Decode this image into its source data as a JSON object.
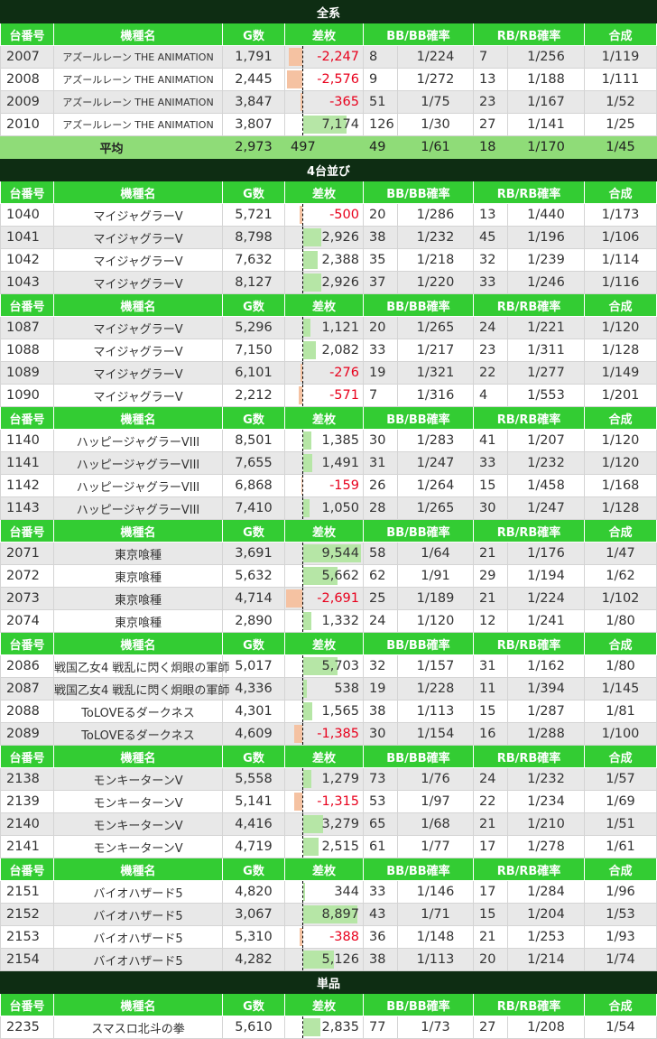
{
  "headers": [
    "台番号",
    "機種名",
    "G数",
    "差枚",
    "BB/BB確率",
    "RB/RB確率",
    "合成"
  ],
  "colors": {
    "section_bg": "#0e2d13",
    "header_bg": "#33cc33",
    "avg_bg": "#8fdc78",
    "bar_pos": "#b6e6a6",
    "bar_neg": "#f5c2a2",
    "negative_text": "#e8001c"
  },
  "diff_bar_max": 10000,
  "sections": [
    {
      "title": "全系",
      "groups": [
        {
          "rows": [
            [
              "2007",
              "アズールレーン THE ANIMATION",
              "1,791",
              -2247,
              "8",
              "1/224",
              "7",
              "1/256",
              "1/119"
            ],
            [
              "2008",
              "アズールレーン THE ANIMATION",
              "2,445",
              -2576,
              "9",
              "1/272",
              "13",
              "1/188",
              "1/111"
            ],
            [
              "2009",
              "アズールレーン THE ANIMATION",
              "3,847",
              -365,
              "51",
              "1/75",
              "23",
              "1/167",
              "1/52"
            ],
            [
              "2010",
              "アズールレーン THE ANIMATION",
              "3,807",
              7174,
              "126",
              "1/30",
              "27",
              "1/141",
              "1/25"
            ]
          ],
          "average": {
            "label": "平均",
            "g": "2,973",
            "diff": "497",
            "bb": "49",
            "bbp": "1/61",
            "rb": "18",
            "rbp": "1/170",
            "total": "1/45"
          }
        }
      ]
    },
    {
      "title": "4台並び",
      "groups": [
        {
          "rows": [
            [
              "1040",
              "マイジャグラーV",
              "5,721",
              -500,
              "20",
              "1/286",
              "13",
              "1/440",
              "1/173"
            ],
            [
              "1041",
              "マイジャグラーV",
              "8,798",
              2926,
              "38",
              "1/232",
              "45",
              "1/196",
              "1/106"
            ],
            [
              "1042",
              "マイジャグラーV",
              "7,632",
              2388,
              "35",
              "1/218",
              "32",
              "1/239",
              "1/114"
            ],
            [
              "1043",
              "マイジャグラーV",
              "8,127",
              2926,
              "37",
              "1/220",
              "33",
              "1/246",
              "1/116"
            ]
          ]
        },
        {
          "rows": [
            [
              "1087",
              "マイジャグラーV",
              "5,296",
              1121,
              "20",
              "1/265",
              "24",
              "1/221",
              "1/120"
            ],
            [
              "1088",
              "マイジャグラーV",
              "7,150",
              2082,
              "33",
              "1/217",
              "23",
              "1/311",
              "1/128"
            ],
            [
              "1089",
              "マイジャグラーV",
              "6,101",
              -276,
              "19",
              "1/321",
              "22",
              "1/277",
              "1/149"
            ],
            [
              "1090",
              "マイジャグラーV",
              "2,212",
              -571,
              "7",
              "1/316",
              "4",
              "1/553",
              "1/201"
            ]
          ]
        },
        {
          "rows": [
            [
              "1140",
              "ハッピージャグラーVIII",
              "8,501",
              1385,
              "30",
              "1/283",
              "41",
              "1/207",
              "1/120"
            ],
            [
              "1141",
              "ハッピージャグラーVIII",
              "7,655",
              1491,
              "31",
              "1/247",
              "33",
              "1/232",
              "1/120"
            ],
            [
              "1142",
              "ハッピージャグラーVIII",
              "6,868",
              -159,
              "26",
              "1/264",
              "15",
              "1/458",
              "1/168"
            ],
            [
              "1143",
              "ハッピージャグラーVIII",
              "7,410",
              1050,
              "28",
              "1/265",
              "30",
              "1/247",
              "1/128"
            ]
          ]
        },
        {
          "rows": [
            [
              "2071",
              "東京喰種",
              "3,691",
              9544,
              "58",
              "1/64",
              "21",
              "1/176",
              "1/47"
            ],
            [
              "2072",
              "東京喰種",
              "5,632",
              5662,
              "62",
              "1/91",
              "29",
              "1/194",
              "1/62"
            ],
            [
              "2073",
              "東京喰種",
              "4,714",
              -2691,
              "25",
              "1/189",
              "21",
              "1/224",
              "1/102"
            ],
            [
              "2074",
              "東京喰種",
              "2,890",
              1332,
              "24",
              "1/120",
              "12",
              "1/241",
              "1/80"
            ]
          ]
        },
        {
          "rows": [
            [
              "2086",
              "戦国乙女4 戦乱に閃く炯眼の軍師",
              "5,017",
              5703,
              "32",
              "1/157",
              "31",
              "1/162",
              "1/80"
            ],
            [
              "2087",
              "戦国乙女4 戦乱に閃く炯眼の軍師",
              "4,336",
              538,
              "19",
              "1/228",
              "11",
              "1/394",
              "1/145"
            ],
            [
              "2088",
              "ToLOVEるダークネス",
              "4,301",
              1565,
              "38",
              "1/113",
              "15",
              "1/287",
              "1/81"
            ],
            [
              "2089",
              "ToLOVEるダークネス",
              "4,609",
              -1385,
              "30",
              "1/154",
              "16",
              "1/288",
              "1/100"
            ]
          ]
        },
        {
          "rows": [
            [
              "2138",
              "モンキーターンV",
              "5,558",
              1279,
              "73",
              "1/76",
              "24",
              "1/232",
              "1/57"
            ],
            [
              "2139",
              "モンキーターンV",
              "5,141",
              -1315,
              "53",
              "1/97",
              "22",
              "1/234",
              "1/69"
            ],
            [
              "2140",
              "モンキーターンV",
              "4,416",
              3279,
              "65",
              "1/68",
              "21",
              "1/210",
              "1/51"
            ],
            [
              "2141",
              "モンキーターンV",
              "4,719",
              2515,
              "61",
              "1/77",
              "17",
              "1/278",
              "1/61"
            ]
          ]
        },
        {
          "rows": [
            [
              "2151",
              "バイオハザード5",
              "4,820",
              344,
              "33",
              "1/146",
              "17",
              "1/284",
              "1/96"
            ],
            [
              "2152",
              "バイオハザード5",
              "3,067",
              8897,
              "43",
              "1/71",
              "15",
              "1/204",
              "1/53"
            ],
            [
              "2153",
              "バイオハザード5",
              "5,310",
              -388,
              "36",
              "1/148",
              "21",
              "1/253",
              "1/93"
            ],
            [
              "2154",
              "バイオハザード5",
              "4,282",
              5126,
              "38",
              "1/113",
              "20",
              "1/214",
              "1/74"
            ]
          ]
        }
      ]
    },
    {
      "title": "単品",
      "groups": [
        {
          "rows": [
            [
              "2235",
              "スマスロ北斗の拳",
              "5,610",
              2835,
              "77",
              "1/73",
              "27",
              "1/208",
              "1/54"
            ]
          ]
        }
      ]
    }
  ]
}
